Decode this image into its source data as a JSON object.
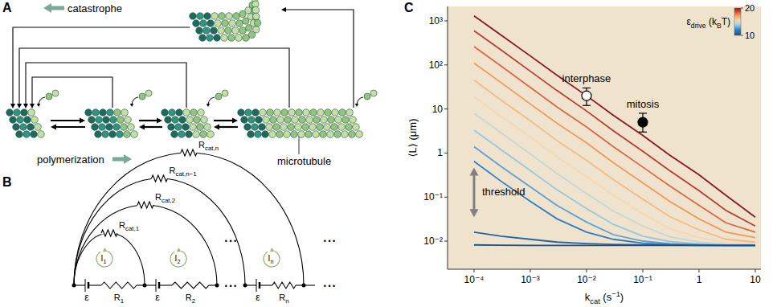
{
  "panels": {
    "a": "A",
    "b": "B",
    "c": "C"
  },
  "diagram_a": {
    "catastrophe": "catastrophe",
    "polymerization": "polymerization",
    "microtubule": "microtubule"
  },
  "diagram_b": {
    "cat_resistors": [
      [
        {
          "t": "R"
        },
        {
          "t": "cat,1",
          "sub": true
        }
      ],
      [
        {
          "t": "R"
        },
        {
          "t": "cat,2",
          "sub": true
        }
      ],
      [
        {
          "t": "R"
        },
        {
          "t": "cat,n−1",
          "sub": true
        }
      ],
      [
        {
          "t": "R"
        },
        {
          "t": "cat,n",
          "sub": true
        }
      ]
    ],
    "currents": [
      [
        {
          "t": "I"
        },
        {
          "t": "1",
          "sub": true
        }
      ],
      [
        {
          "t": "I"
        },
        {
          "t": "2",
          "sub": true
        }
      ],
      [
        {
          "t": "I"
        },
        {
          "t": "n",
          "sub": true
        }
      ]
    ],
    "emf": [
      "ε",
      "ε",
      "ε"
    ],
    "resistors": [
      [
        {
          "t": "R"
        },
        {
          "t": "1",
          "sub": true
        }
      ],
      [
        {
          "t": "R"
        },
        {
          "t": "2",
          "sub": true
        }
      ],
      [
        {
          "t": "R"
        },
        {
          "t": "n",
          "sub": true
        }
      ]
    ],
    "ellipsis": "• • •"
  },
  "chart_data": {
    "type": "line",
    "log": true,
    "xlabel": [
      {
        "t": "k"
      },
      {
        "t": "cat",
        "sub": true
      },
      {
        "t": " (s"
      },
      {
        "t": "−1",
        "sup": true
      },
      {
        "t": ")"
      }
    ],
    "ylabel": [
      {
        "t": "⟨L⟩ (μm)"
      }
    ],
    "xlim": [
      3.38e-05,
      12.6
    ],
    "ylim": [
      0.0023,
      2130
    ],
    "xticks": [
      {
        "value": 0.0001,
        "label": "10⁻⁴"
      },
      {
        "value": 0.001,
        "label": "10⁻³"
      },
      {
        "value": 0.01,
        "label": "10⁻²"
      },
      {
        "value": 0.1,
        "label": "10⁻¹"
      },
      1,
      10
    ],
    "yticks": [
      {
        "value": 0.01,
        "label": "10⁻²"
      },
      {
        "value": 0.1,
        "label": "10⁻¹"
      },
      1,
      10,
      {
        "value": 100,
        "label": "10²"
      },
      {
        "value": 1000,
        "label": "10³"
      }
    ],
    "x": [
      0.0001,
      0.0003,
      0.001,
      0.003,
      0.01,
      0.03,
      0.1,
      0.3,
      1,
      3,
      10
    ],
    "series": [
      {
        "epsilon": 20,
        "values": [
          1300,
          480,
          160,
          58,
          20,
          7.2,
          2.5,
          0.9,
          0.32,
          0.11,
          0.035
        ]
      },
      {
        "epsilon": 19.1,
        "values": [
          600,
          220,
          72,
          26,
          9,
          3.2,
          1.1,
          0.4,
          0.14,
          0.05,
          0.022
        ]
      },
      {
        "epsilon": 18.2,
        "values": [
          260,
          95,
          31,
          11,
          3.9,
          1.4,
          0.48,
          0.18,
          0.065,
          0.026,
          0.016
        ]
      },
      {
        "epsilon": 17.3,
        "values": [
          110,
          40,
          13,
          4.7,
          1.7,
          0.6,
          0.21,
          0.08,
          0.032,
          0.016,
          0.012
        ]
      },
      {
        "epsilon": 16.4,
        "values": [
          45,
          16,
          5.4,
          1.9,
          0.68,
          0.25,
          0.09,
          0.036,
          0.018,
          0.011,
          0.0095
        ]
      },
      {
        "epsilon": 15.5,
        "values": [
          19,
          6.8,
          2.3,
          0.82,
          0.29,
          0.11,
          0.042,
          0.019,
          0.012,
          0.0092,
          0.0085
        ]
      },
      {
        "epsilon": 14.6,
        "values": [
          8,
          2.9,
          0.95,
          0.34,
          0.12,
          0.048,
          0.022,
          0.0125,
          0.0095,
          0.0085,
          0.0082
        ]
      },
      {
        "epsilon": 13.7,
        "values": [
          3.3,
          1.2,
          0.4,
          0.145,
          0.055,
          0.024,
          0.013,
          0.0098,
          0.0087,
          0.0082,
          0.008
        ]
      },
      {
        "epsilon": 12.8,
        "values": [
          1.4,
          0.5,
          0.17,
          0.064,
          0.027,
          0.014,
          0.01,
          0.0088,
          0.0083,
          0.008,
          0.008
        ]
      },
      {
        "epsilon": 11.9,
        "values": [
          0.65,
          0.23,
          0.08,
          0.032,
          0.016,
          0.011,
          0.009,
          0.0084,
          0.0081,
          0.008,
          0.008
        ]
      },
      {
        "epsilon": 10.9,
        "values": [
          0.016,
          0.013,
          0.011,
          0.0095,
          0.0088,
          0.0084,
          0.0082,
          0.0081,
          0.008,
          0.008,
          0.008
        ]
      },
      {
        "epsilon": 10,
        "values": [
          0.0082,
          0.0081,
          0.008,
          0.008,
          0.008,
          0.008,
          0.008,
          0.008,
          0.008,
          0.008,
          0.008
        ]
      }
    ],
    "colorbar": {
      "label": [
        {
          "t": "ε"
        },
        {
          "t": "drive",
          "sub": true
        },
        {
          "t": " (k"
        },
        {
          "t": "B",
          "sub": true
        },
        {
          "t": "T)"
        }
      ],
      "range": [
        10,
        20
      ],
      "ticks": [
        10,
        20
      ]
    },
    "points": [
      {
        "label": "interphase",
        "x": 0.01,
        "y": 20,
        "yerr": [
          8,
          10
        ],
        "marker": "open"
      },
      {
        "label": "mitosis",
        "x": 0.1,
        "y": 5,
        "yerr": [
          2,
          3
        ],
        "marker": "filled"
      }
    ],
    "annotations": [
      {
        "text": "threshold",
        "x": 0.0001,
        "y_from": 0.035,
        "y_to": 0.47
      }
    ]
  }
}
